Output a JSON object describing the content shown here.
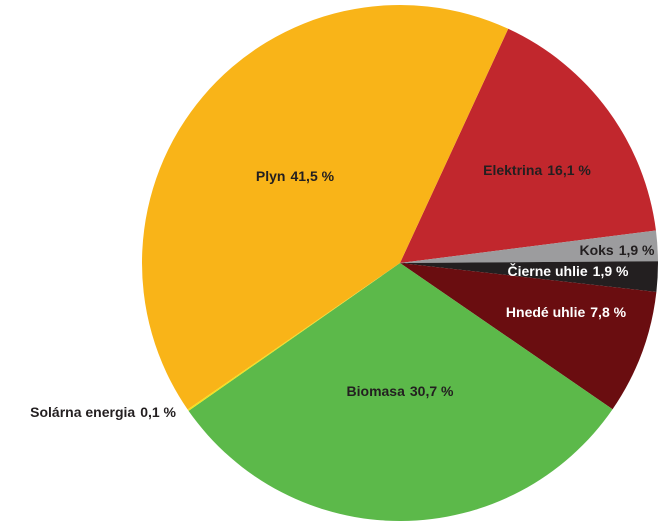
{
  "chart_data": {
    "type": "pie",
    "categories": [
      "Elektrina",
      "Koks",
      "Čierne uhlie",
      "Hnedé uhlie",
      "Biomasa",
      "Solárna energia",
      "Plyn"
    ],
    "values": [
      16.1,
      1.9,
      1.9,
      7.8,
      30.7,
      0.1,
      41.5
    ],
    "value_labels": [
      "16,1 %",
      "1,9 %",
      "1,9 %",
      "7,8 %",
      "30,7 %",
      "0,1 %",
      "41,5 %"
    ],
    "colors": [
      "#c1272d",
      "#9c9c9e",
      "#231f20",
      "#6a0d10",
      "#5cb94a",
      "#f4e21c",
      "#f9b418"
    ]
  }
}
